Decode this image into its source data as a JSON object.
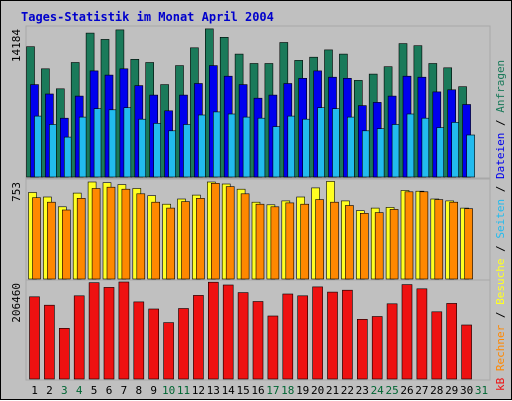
{
  "title": "Tages-Statistik im Monat April 2004",
  "colors": {
    "background": "#c0c0c0",
    "title": "#0000cc",
    "weekday_label": "#000000",
    "weekend_label": "#006633",
    "anfragen": "#1a7a5a",
    "dateien": "#0000ee",
    "seiten": "#22bbee",
    "besuche": "#ffff22",
    "rechner": "#ff8800",
    "kb": "#ee1111"
  },
  "legend": {
    "anfragen": "Anfragen",
    "dateien": "Dateien",
    "seiten": "Seiten",
    "besuche": "Besuche",
    "rechner": "Rechner",
    "kb": "kB",
    "separator": "/"
  },
  "chart_data": {
    "type": "bar",
    "title": "Tages-Statistik im Monat April 2004",
    "categories": [
      "1",
      "2",
      "3",
      "4",
      "5",
      "6",
      "7",
      "8",
      "9",
      "10",
      "11",
      "12",
      "13",
      "14",
      "15",
      "16",
      "17",
      "18",
      "19",
      "20",
      "21",
      "22",
      "23",
      "24",
      "25",
      "26",
      "27",
      "28",
      "29",
      "30",
      "31"
    ],
    "weekend_days": [
      3,
      4,
      10,
      11,
      17,
      18,
      24,
      25,
      31
    ],
    "panels": [
      {
        "key": "hits",
        "ymax_label": "14184",
        "ylim": [
          0,
          14184
        ],
        "series": [
          {
            "name": "Anfragen",
            "color": "#1a7a5a",
            "values": [
              12400,
              10300,
              8400,
              10900,
              13700,
              13100,
              14000,
              11200,
              10900,
              8800,
              10600,
              12300,
              14100,
              13300,
              11700,
              10800,
              10800,
              12800,
              11100,
              11400,
              12100,
              11700,
              9200,
              9800,
              10500,
              12700,
              12500,
              10800,
              10400,
              8600,
              null
            ]
          },
          {
            "name": "Dateien",
            "color": "#0000ee",
            "values": [
              8800,
              7900,
              5600,
              7700,
              10100,
              9700,
              10300,
              8700,
              7800,
              6300,
              7800,
              8900,
              10600,
              9600,
              8800,
              7500,
              7800,
              8900,
              9400,
              10100,
              9500,
              9400,
              6800,
              7100,
              7700,
              9600,
              9500,
              8100,
              8300,
              6900,
              null
            ]
          },
          {
            "name": "Seiten",
            "color": "#22bbee",
            "values": [
              5800,
              5000,
              3800,
              5700,
              6500,
              6400,
              6600,
              5500,
              5100,
              4400,
              5000,
              5900,
              6200,
              6000,
              5700,
              5600,
              4800,
              5800,
              5500,
              6600,
              6500,
              5700,
              4400,
              4600,
              5000,
              6000,
              5600,
              4700,
              5200,
              4000,
              null
            ]
          }
        ]
      },
      {
        "key": "visits",
        "ymax_label": "753",
        "ylim": [
          0,
          753
        ],
        "series": [
          {
            "name": "Besuche",
            "color": "#ffff22",
            "values": [
              665,
              630,
              555,
              660,
              745,
              740,
              725,
              695,
              640,
              575,
              615,
              645,
              745,
              730,
              690,
              590,
              570,
              600,
              630,
              700,
              750,
              600,
              525,
              545,
              550,
              680,
              675,
              615,
              600,
              545,
              null
            ]
          },
          {
            "name": "Rechner",
            "color": "#ff8800",
            "values": [
              625,
              590,
              530,
              620,
              695,
              705,
              690,
              655,
              590,
              545,
              595,
              620,
              735,
              710,
              655,
              575,
              555,
              585,
              575,
              610,
              590,
              565,
              505,
              510,
              535,
              670,
              670,
              610,
              590,
              540,
              null
            ]
          }
        ]
      },
      {
        "key": "kb",
        "ymax_label": "206460",
        "ylim": [
          0,
          206460
        ],
        "series": [
          {
            "name": "kB",
            "color": "#ee1111",
            "values": [
              175000,
              157000,
              108000,
              177000,
              205000,
              195000,
              206460,
              164000,
              149000,
              120000,
              150000,
              178000,
              206000,
              200000,
              184000,
              165000,
              134000,
              181000,
              177000,
              196000,
              185000,
              189000,
              127000,
              133000,
              160000,
              201000,
              192000,
              143000,
              161000,
              115000,
              null
            ]
          }
        ]
      }
    ]
  }
}
